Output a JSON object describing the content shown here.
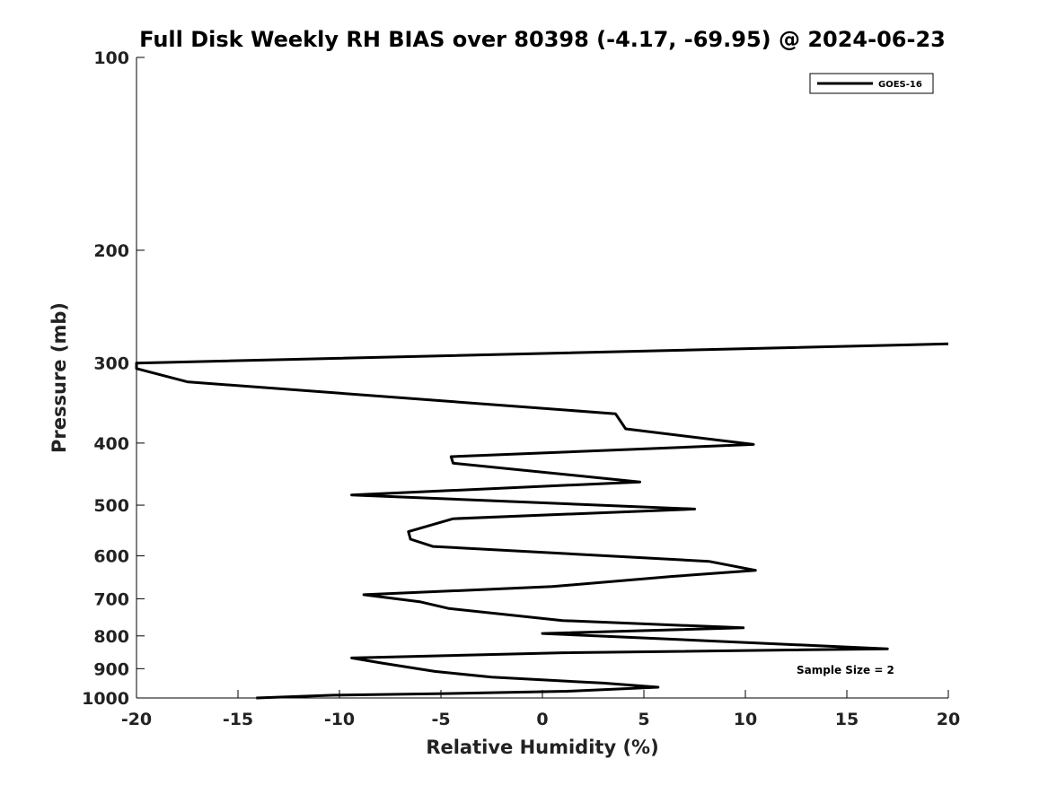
{
  "chart_data": {
    "type": "line",
    "title": "Full Disk Weekly RH BIAS over 80398 (-4.17, -69.95) @ 2024-06-23",
    "xlabel": "Relative Humidity (%)",
    "ylabel": "Pressure (mb)",
    "xlim": [
      -20,
      20
    ],
    "ylim": [
      100,
      1000
    ],
    "y_scale": "log",
    "y_inverted": true,
    "x_ticks": [
      -20,
      -15,
      -10,
      -5,
      0,
      5,
      10,
      15,
      20
    ],
    "y_ticks": [
      100,
      200,
      300,
      400,
      500,
      600,
      700,
      800,
      900,
      1000
    ],
    "grid": false,
    "legend_position": "top-right",
    "annotation": "Sample Size = 2",
    "series": [
      {
        "name": "GOES-16",
        "color": "#000000",
        "points": [
          [
            20,
            280
          ],
          [
            -20,
            300
          ],
          [
            -20,
            306
          ],
          [
            -17.5,
            321
          ],
          [
            3.6,
            360
          ],
          [
            4.1,
            380
          ],
          [
            10.4,
            402
          ],
          [
            -4.5,
            420
          ],
          [
            -4.4,
            430
          ],
          [
            4.8,
            460
          ],
          [
            -9.4,
            482
          ],
          [
            7.5,
            507
          ],
          [
            -4.4,
            525
          ],
          [
            -6.6,
            550
          ],
          [
            -6.5,
            565
          ],
          [
            -5.4,
            580
          ],
          [
            8.2,
            612
          ],
          [
            10.5,
            632
          ],
          [
            6.4,
            646
          ],
          [
            0.5,
            670
          ],
          [
            -8.8,
            690
          ],
          [
            -6,
            708
          ],
          [
            -4.6,
            725
          ],
          [
            1,
            757
          ],
          [
            9.9,
            777
          ],
          [
            0,
            793
          ],
          [
            17,
            838
          ],
          [
            1,
            850
          ],
          [
            -9.4,
            866
          ],
          [
            -7.9,
            882
          ],
          [
            -5.3,
            909
          ],
          [
            -2.5,
            928
          ],
          [
            3,
            948
          ],
          [
            5.7,
            962
          ],
          [
            1.2,
            976
          ],
          [
            -5.2,
            985
          ],
          [
            -10.3,
            990
          ],
          [
            -14.1,
            1000
          ]
        ]
      }
    ]
  }
}
